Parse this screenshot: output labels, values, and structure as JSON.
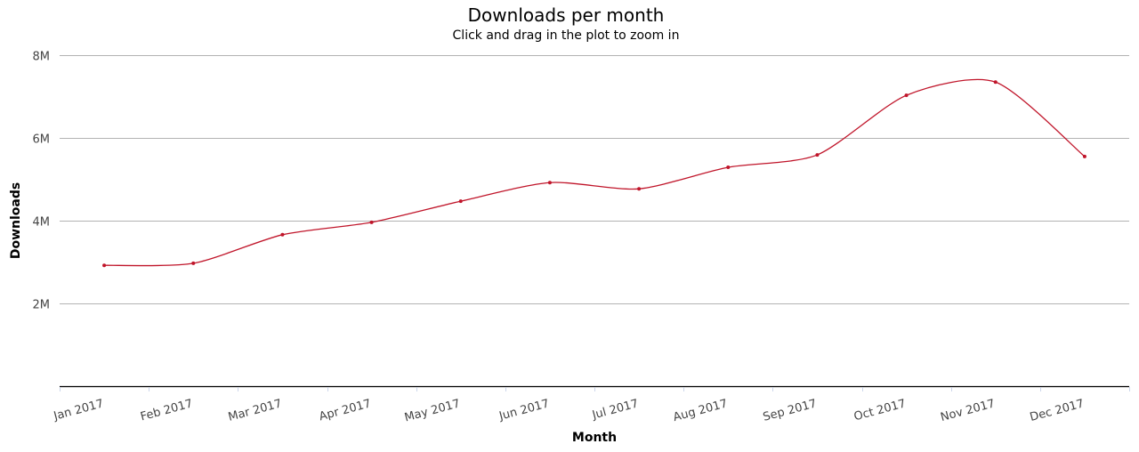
{
  "chart_data": {
    "type": "line",
    "title": "Downloads per month",
    "subtitle": "Click and drag in the plot to zoom in",
    "xlabel": "Month",
    "ylabel": "Downloads",
    "categories": [
      "Jan 2017",
      "Feb 2017",
      "Mar 2017",
      "Apr 2017",
      "May 2017",
      "Jun 2017",
      "Jul 2017",
      "Aug 2017",
      "Sep 2017",
      "Oct 2017",
      "Nov 2017",
      "Dec 2017"
    ],
    "series": [
      {
        "name": "Downloads",
        "color": "#c0152a",
        "values": [
          2920000,
          2970000,
          3660000,
          3960000,
          4470000,
          4920000,
          4770000,
          5290000,
          5590000,
          7030000,
          7350000,
          5550000
        ]
      }
    ],
    "ylim": [
      0,
      8000000
    ],
    "yticks": [
      {
        "value": 2000000,
        "label": "2M"
      },
      {
        "value": 4000000,
        "label": "4M"
      },
      {
        "value": 6000000,
        "label": "6M"
      },
      {
        "value": 8000000,
        "label": "8M"
      }
    ],
    "grid": true,
    "legend": "none",
    "curve": "smooth"
  }
}
